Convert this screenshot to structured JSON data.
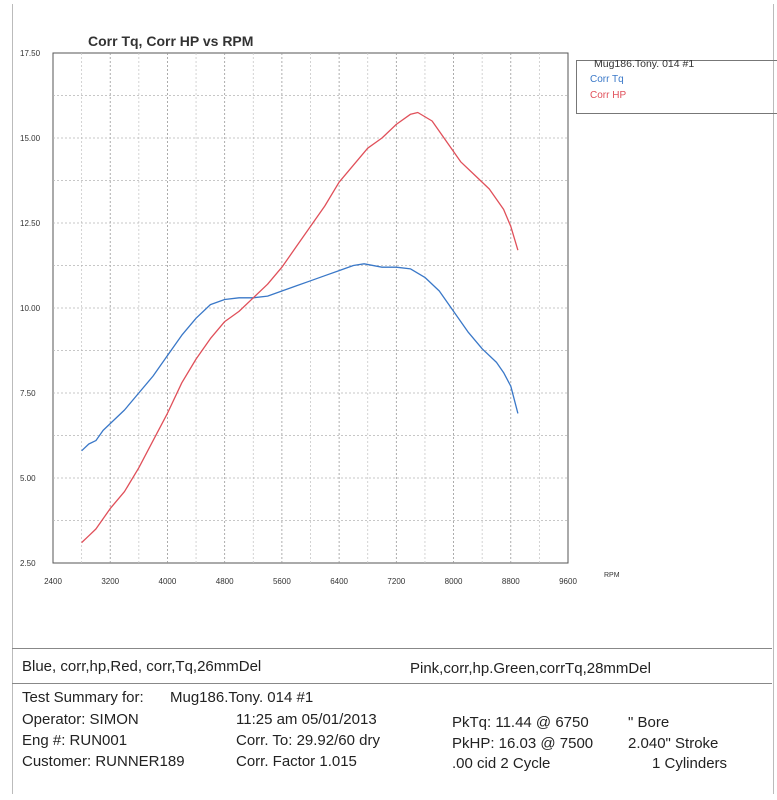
{
  "chart_data": {
    "type": "line",
    "title": "Corr Tq, Corr HP vs RPM",
    "xlabel": "RPM",
    "ylabel": "",
    "xlim": [
      2400,
      9600
    ],
    "ylim": [
      2.5,
      17.5
    ],
    "x_ticks": [
      "2400",
      "3200",
      "4000",
      "4800",
      "5600",
      "6400",
      "7200",
      "8000",
      "8800",
      "9600"
    ],
    "y_ticks": [
      "2.50",
      "5.00",
      "7.50",
      "10.00",
      "12.50",
      "15.00",
      "17.50"
    ],
    "grid": true,
    "legend_position": "top-right",
    "legend_header": "Mug186.Tony. 014  #1",
    "series": [
      {
        "name": "Corr Tq",
        "color": "#3a78c8",
        "points": [
          [
            2800,
            5.8
          ],
          [
            2900,
            6.0
          ],
          [
            3000,
            6.1
          ],
          [
            3100,
            6.4
          ],
          [
            3200,
            6.6
          ],
          [
            3400,
            7.0
          ],
          [
            3600,
            7.5
          ],
          [
            3800,
            8.0
          ],
          [
            4000,
            8.6
          ],
          [
            4200,
            9.2
          ],
          [
            4400,
            9.7
          ],
          [
            4600,
            10.1
          ],
          [
            4800,
            10.25
          ],
          [
            5000,
            10.3
          ],
          [
            5200,
            10.3
          ],
          [
            5400,
            10.35
          ],
          [
            5600,
            10.5
          ],
          [
            5800,
            10.65
          ],
          [
            6000,
            10.8
          ],
          [
            6200,
            10.95
          ],
          [
            6400,
            11.1
          ],
          [
            6600,
            11.25
          ],
          [
            6750,
            11.3
          ],
          [
            7000,
            11.2
          ],
          [
            7200,
            11.2
          ],
          [
            7400,
            11.15
          ],
          [
            7600,
            10.9
          ],
          [
            7800,
            10.5
          ],
          [
            8000,
            9.9
          ],
          [
            8200,
            9.3
          ],
          [
            8400,
            8.8
          ],
          [
            8600,
            8.4
          ],
          [
            8700,
            8.1
          ],
          [
            8800,
            7.7
          ],
          [
            8900,
            6.9
          ]
        ]
      },
      {
        "name": "Corr HP",
        "color": "#e0505a",
        "points": [
          [
            2800,
            3.1
          ],
          [
            2900,
            3.3
          ],
          [
            3000,
            3.5
          ],
          [
            3200,
            4.1
          ],
          [
            3400,
            4.6
          ],
          [
            3600,
            5.3
          ],
          [
            3800,
            6.1
          ],
          [
            4000,
            6.9
          ],
          [
            4200,
            7.8
          ],
          [
            4400,
            8.5
          ],
          [
            4600,
            9.1
          ],
          [
            4800,
            9.6
          ],
          [
            5000,
            9.9
          ],
          [
            5200,
            10.3
          ],
          [
            5400,
            10.7
          ],
          [
            5600,
            11.2
          ],
          [
            5800,
            11.8
          ],
          [
            6000,
            12.4
          ],
          [
            6200,
            13.0
          ],
          [
            6400,
            13.7
          ],
          [
            6600,
            14.2
          ],
          [
            6800,
            14.7
          ],
          [
            7000,
            15.0
          ],
          [
            7200,
            15.4
          ],
          [
            7400,
            15.7
          ],
          [
            7500,
            15.75
          ],
          [
            7700,
            15.5
          ],
          [
            7900,
            14.9
          ],
          [
            8100,
            14.3
          ],
          [
            8300,
            13.9
          ],
          [
            8500,
            13.5
          ],
          [
            8700,
            12.9
          ],
          [
            8800,
            12.4
          ],
          [
            8900,
            11.7
          ]
        ]
      }
    ]
  },
  "notes": {
    "left": "Blue, corr,hp,Red, corr,Tq,26mmDel",
    "right": "Pink,corr,hp.Green,corrTq,28mmDel"
  },
  "summary": {
    "test_summary_label": "Test Summary for:",
    "test_summary_value": "Mug186.Tony. 014  #1",
    "operator": "Operator: SIMON",
    "eng": "Eng #: RUN001",
    "customer": "Customer: RUNNER189",
    "datetime": "11:25 am 05/01/2013",
    "corr_to": "Corr. To: 29.92/60 dry",
    "corr_factor": "Corr. Factor 1.015",
    "pktq": "PkTq: 11.44 @  6750",
    "pkhp": "PkHP: 16.03 @  7500",
    "cid": ".00 cid  2 Cycle",
    "bore": "\" Bore",
    "stroke": "2.040\" Stroke",
    "cylinders": "1 Cylinders"
  }
}
